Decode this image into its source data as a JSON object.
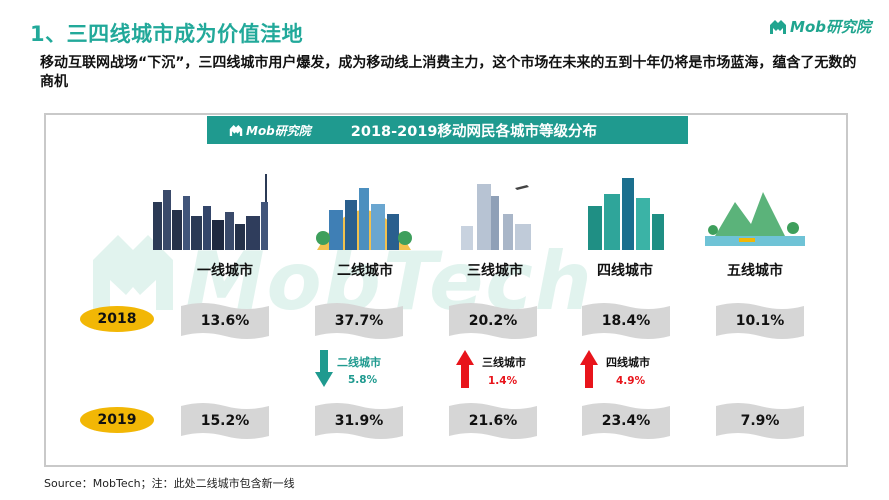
{
  "page": {
    "title": "1、三四线城市成为价值洼地",
    "logo_text": "Mob研究院",
    "subtitle": "移动互联网战场“下沉”，三四线城市用户爆发，成为移动线上消费主力，这个市场在未来的五到十年仍将是市场蓝海，蕴含了无数的商机",
    "watermark_text": "MobTech",
    "source": "Source：MobTech；注：此处二线城市包含新一线"
  },
  "chart_data": {
    "type": "table",
    "title": "2018-2019移动网民各城市等级分布",
    "banner_logo": "Mob研究院",
    "categories": [
      "一线城市",
      "二线城市",
      "三线城市",
      "四线城市",
      "五线城市"
    ],
    "series": [
      {
        "name": "2018",
        "values": [
          13.6,
          37.7,
          20.2,
          18.4,
          10.1
        ],
        "labels": [
          "13.6%",
          "37.7%",
          "20.2%",
          "18.4%",
          "10.1%"
        ]
      },
      {
        "name": "2019",
        "values": [
          15.2,
          31.9,
          21.6,
          23.4,
          7.9
        ],
        "labels": [
          "15.2%",
          "31.9%",
          "21.6%",
          "23.4%",
          "7.9%"
        ]
      }
    ],
    "changes": [
      {
        "category": "二线城市",
        "direction": "down",
        "value": "5.8%",
        "color": "#1f9a8f"
      },
      {
        "category": "三线城市",
        "direction": "up",
        "value": "1.4%",
        "color": "#e8141b"
      },
      {
        "category": "四线城市",
        "direction": "up",
        "value": "4.9%",
        "color": "#e8141b"
      }
    ],
    "colors": {
      "accent": "#1f9a8f",
      "title": "#22a99a",
      "year_badge": "#f2b705",
      "flag": "#d6d6d6",
      "up": "#e8141b",
      "down": "#1f9a8f"
    }
  }
}
